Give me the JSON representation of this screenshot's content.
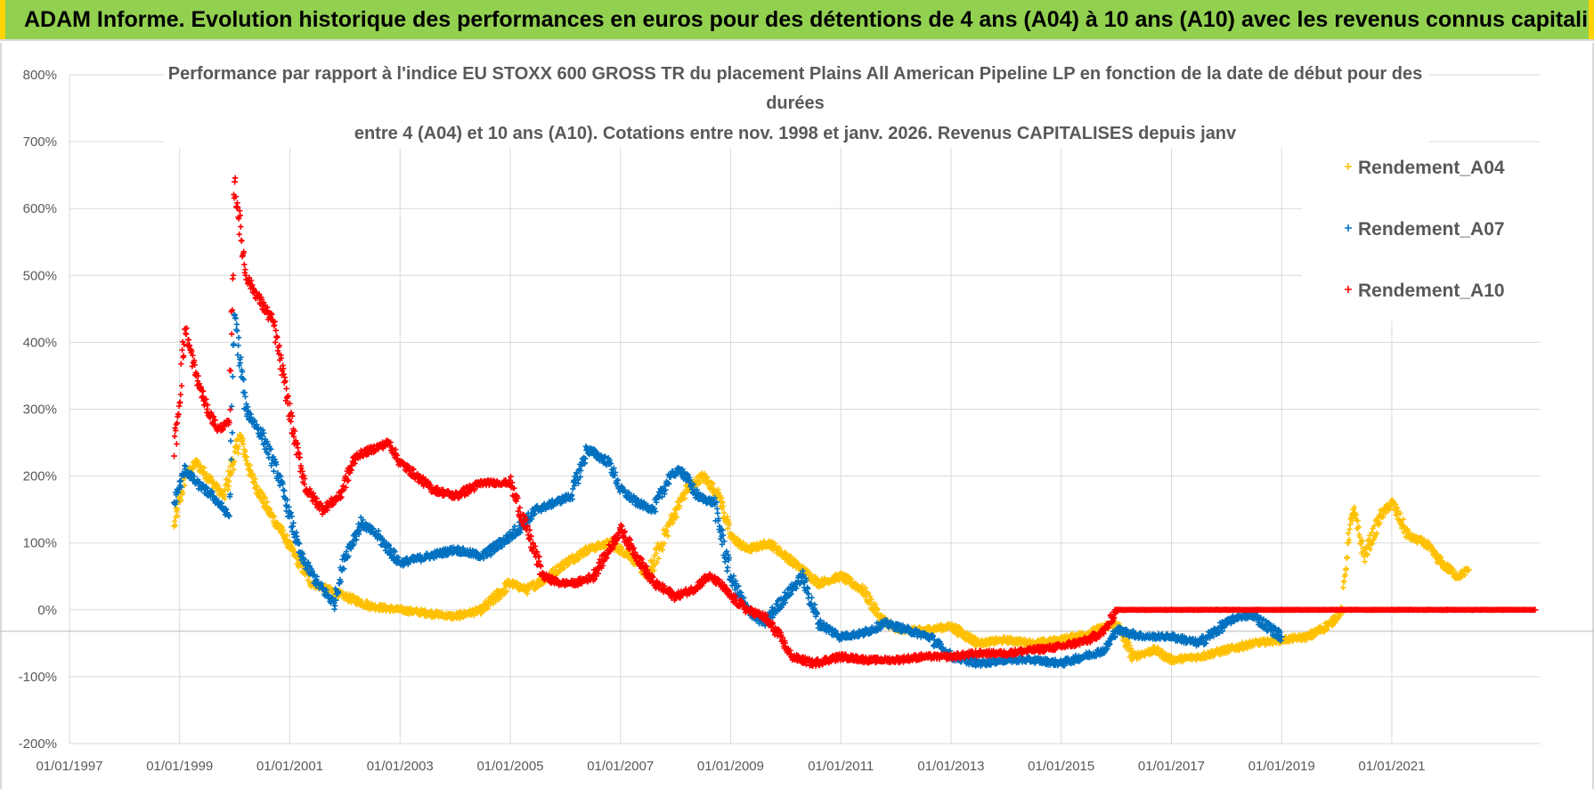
{
  "header": {
    "banner_text": "ADAM Informe. Evolution historique des performances en euros pour des détentions de 4 ans (A04) à 10 ans (A10) avec les revenus connus capitalisés"
  },
  "chart_data": {
    "type": "scatter",
    "title_lines": [
      "Performance par rapport à l'indice EU STOXX 600 GROSS TR  du placement Plains All American Pipeline LP en fonction de la date de début pour des",
      "durées",
      "entre 4 (A04) et 10 ans (A10). Cotations entre nov. 1998 et janv. 2026. Revenus CAPITALISES depuis janv"
    ],
    "xlabel": "",
    "ylabel": "",
    "xlim": [
      1997.0,
      2023.7
    ],
    "ylim": [
      -200,
      800
    ],
    "y_ticks": [
      800,
      700,
      600,
      500,
      400,
      300,
      200,
      100,
      0,
      -100,
      -200
    ],
    "y_tick_labels": [
      "800%",
      "700%",
      "600%",
      "500%",
      "400%",
      "300%",
      "200%",
      "100%",
      "0%",
      "-100%",
      "-200%"
    ],
    "x_ticks": [
      1997,
      1999,
      2001,
      2003,
      2005,
      2007,
      2009,
      2011,
      2013,
      2015,
      2017,
      2019,
      2021
    ],
    "x_tick_labels": [
      "01/01/1997",
      "01/01/1999",
      "01/01/2001",
      "01/01/2003",
      "01/01/2005",
      "01/01/2007",
      "01/01/2009",
      "01/01/2011",
      "01/01/2013",
      "01/01/2015",
      "01/01/2017",
      "01/01/2019",
      "01/01/2021"
    ],
    "grid": true,
    "legend_position": "top-right",
    "marker": "+",
    "series": [
      {
        "name": "Rendement_A04",
        "color": "#ffc000",
        "x": [
          1998.9,
          1999.1,
          1999.3,
          1999.6,
          1999.8,
          2000.1,
          2000.3,
          2000.6,
          2000.9,
          2001.1,
          2001.4,
          2001.7,
          2002.0,
          2002.5,
          2003.0,
          2003.5,
          2004.0,
          2004.5,
          2005.0,
          2005.3,
          2005.7,
          2006.0,
          2006.4,
          2006.8,
          2007.2,
          2007.5,
          2007.9,
          2008.2,
          2008.5,
          2008.8,
          2009.0,
          2009.3,
          2009.7,
          2010.0,
          2010.3,
          2010.6,
          2011.0,
          2011.4,
          2011.7,
          2012.0,
          2012.5,
          2013.0,
          2013.5,
          2014.0,
          2014.5,
          2015.0,
          2015.5,
          2016.0,
          2016.3,
          2016.7,
          2017.0,
          2017.5,
          2018.0,
          2018.5,
          2019.0,
          2019.5,
          2019.9,
          2020.1,
          2020.2,
          2020.3,
          2020.5,
          2020.8,
          2021.0,
          2021.3,
          2021.6,
          2021.9,
          2022.2,
          2022.4
        ],
        "y": [
          125,
          200,
          220,
          190,
          170,
          260,
          200,
          150,
          110,
          80,
          40,
          30,
          20,
          5,
          0,
          -5,
          -10,
          0,
          40,
          30,
          50,
          70,
          90,
          100,
          80,
          50,
          130,
          180,
          200,
          170,
          110,
          90,
          100,
          80,
          60,
          40,
          50,
          30,
          -10,
          -30,
          -30,
          -25,
          -50,
          -45,
          -50,
          -45,
          -35,
          -20,
          -70,
          -60,
          -75,
          -70,
          -60,
          -50,
          -45,
          -40,
          -20,
          0,
          100,
          150,
          80,
          140,
          160,
          110,
          100,
          70,
          50,
          60
        ]
      },
      {
        "name": "Rendement_A07",
        "color": "#0070c0",
        "x": [
          1998.9,
          1999.1,
          1999.3,
          1999.6,
          1999.8,
          1999.9,
          2000.0,
          2000.2,
          2000.5,
          2000.8,
          2001.0,
          2001.2,
          2001.5,
          2001.8,
          2002.0,
          2002.3,
          2002.6,
          2003.0,
          2003.5,
          2004.0,
          2004.5,
          2005.0,
          2005.5,
          2005.8,
          2006.1,
          2006.4,
          2006.8,
          2007.0,
          2007.3,
          2007.6,
          2007.9,
          2008.1,
          2008.4,
          2008.7,
          2009.0,
          2009.3,
          2009.6,
          2010.0,
          2010.3,
          2010.6,
          2011.0,
          2011.4,
          2011.8,
          2012.2,
          2012.6,
          2013.0,
          2013.5,
          2014.0,
          2014.5,
          2015.0,
          2015.4,
          2015.8,
          2016.0,
          2016.5,
          2017.0,
          2017.5,
          2018.0,
          2018.2,
          2018.5,
          2019.0
        ],
        "y": [
          160,
          210,
          190,
          170,
          150,
          140,
          440,
          300,
          260,
          200,
          140,
          80,
          40,
          10,
          80,
          130,
          110,
          70,
          80,
          90,
          80,
          110,
          150,
          160,
          170,
          240,
          220,
          180,
          160,
          150,
          200,
          210,
          170,
          160,
          50,
          0,
          -20,
          20,
          50,
          -20,
          -40,
          -35,
          -20,
          -30,
          -40,
          -70,
          -80,
          -75,
          -75,
          -80,
          -70,
          -60,
          -30,
          -40,
          -40,
          -50,
          -20,
          -10,
          -10,
          -40
        ]
      },
      {
        "name": "Rendement_A10",
        "color": "#ff0000",
        "x": [
          1998.9,
          1999.1,
          1999.3,
          1999.5,
          1999.7,
          1999.9,
          2000.0,
          2000.2,
          2000.4,
          2000.7,
          2000.9,
          2001.1,
          2001.3,
          2001.6,
          2001.9,
          2002.2,
          2002.5,
          2002.8,
          2003.0,
          2003.3,
          2003.6,
          2004.0,
          2004.5,
          2005.0,
          2005.3,
          2005.6,
          2005.9,
          2006.2,
          2006.5,
          2006.8,
          2007.0,
          2007.3,
          2007.6,
          2008.0,
          2008.3,
          2008.6,
          2008.8,
          2009.0,
          2009.3,
          2009.6,
          2009.9,
          2010.1,
          2010.5,
          2011.0,
          2011.5,
          2012.0,
          2012.5,
          2013.0,
          2013.5,
          2014.0,
          2014.5,
          2015.0,
          2015.5,
          2015.8,
          2016.0,
          2017.0,
          2018.0,
          2019.0,
          2020.0,
          2021.0,
          2022.0,
          2023.0,
          2023.6
        ],
        "y": [
          230,
          420,
          350,
          300,
          270,
          280,
          640,
          500,
          470,
          430,
          340,
          250,
          180,
          150,
          170,
          230,
          240,
          250,
          220,
          200,
          180,
          170,
          190,
          190,
          120,
          50,
          40,
          40,
          50,
          90,
          120,
          80,
          40,
          20,
          30,
          50,
          40,
          20,
          0,
          -10,
          -40,
          -70,
          -80,
          -70,
          -75,
          -75,
          -70,
          -70,
          -65,
          -65,
          -60,
          -55,
          -45,
          -30,
          0,
          0,
          0,
          0,
          0,
          0,
          0,
          0,
          0
        ]
      }
    ]
  }
}
